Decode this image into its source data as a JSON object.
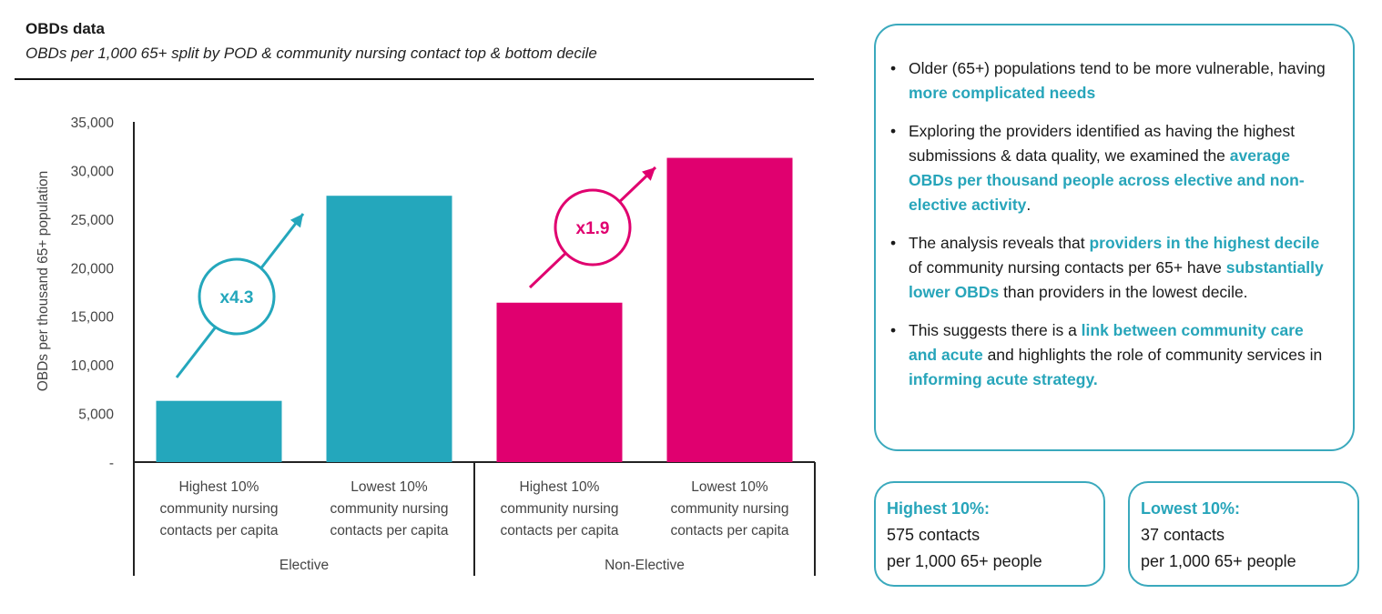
{
  "header": {
    "title": "OBDs data",
    "subtitle": "OBDs per 1,000 65+ split by POD & community nursing contact top & bottom decile"
  },
  "chart_data": {
    "type": "bar",
    "ylabel": "OBDs per thousand 65+ population",
    "ylim": [
      0,
      35000
    ],
    "yticks": [
      {
        "value": 0,
        "label": "-"
      },
      {
        "value": 5000,
        "label": "5,000"
      },
      {
        "value": 10000,
        "label": "10,000"
      },
      {
        "value": 15000,
        "label": "15,000"
      },
      {
        "value": 20000,
        "label": "20,000"
      },
      {
        "value": 25000,
        "label": "25,000"
      },
      {
        "value": 30000,
        "label": "30,000"
      },
      {
        "value": 35000,
        "label": "35,000"
      }
    ],
    "categories": [
      {
        "label": [
          "Highest 10%",
          "community nursing",
          "contacts per capita"
        ],
        "group": "Elective",
        "value": 6300,
        "color": "#24a7bc"
      },
      {
        "label": [
          "Lowest 10%",
          "community nursing",
          "contacts per capita"
        ],
        "group": "Elective",
        "value": 27400,
        "color": "#24a7bc"
      },
      {
        "label": [
          "Highest 10%",
          "community nursing",
          "contacts per capita"
        ],
        "group": "Non-Elective",
        "value": 16400,
        "color": "#e0006f"
      },
      {
        "label": [
          "Lowest 10%",
          "community nursing",
          "contacts per capita"
        ],
        "group": "Non-Elective",
        "value": 31300,
        "color": "#e0006f"
      }
    ],
    "groups": [
      "Elective",
      "Non-Elective"
    ],
    "annotations": [
      {
        "text": "x4.3",
        "color": "#24a7bc"
      },
      {
        "text": "x1.9",
        "color": "#e0006f"
      }
    ],
    "grid": false,
    "legend": "none"
  },
  "info": {
    "bullets": [
      [
        {
          "t": "Older (65+) populations tend to be more vulnerable, having "
        },
        {
          "t": "more complicated needs",
          "hl": true
        }
      ],
      [
        {
          "t": "Exploring the providers identified as having the highest submissions & data quality, we examined the "
        },
        {
          "t": "average OBDs per thousand people across elective and non-elective activity",
          "hl": true
        },
        {
          "t": "."
        }
      ],
      [
        {
          "t": "The analysis reveals that "
        },
        {
          "t": "providers in the highest decile",
          "hl": true
        },
        {
          "t": " of community nursing contacts per 65+ have "
        },
        {
          "t": "substantially lower OBDs",
          "hl": true
        },
        {
          "t": " than providers in the lowest decile."
        }
      ],
      [
        {
          "t": "This suggests there is a "
        },
        {
          "t": "link between community care and acute",
          "hl": true
        },
        {
          "t": " and highlights the role of community services in "
        },
        {
          "t": "informing acute strategy.",
          "hl": true
        }
      ]
    ]
  },
  "stats": {
    "highest": {
      "head": "Highest 10%:",
      "line1": "575 contacts",
      "line2": "per 1,000 65+ people"
    },
    "lowest": {
      "head": "Lowest 10%:",
      "line1": "37 contacts",
      "line2": "per 1,000 65+ people"
    }
  }
}
